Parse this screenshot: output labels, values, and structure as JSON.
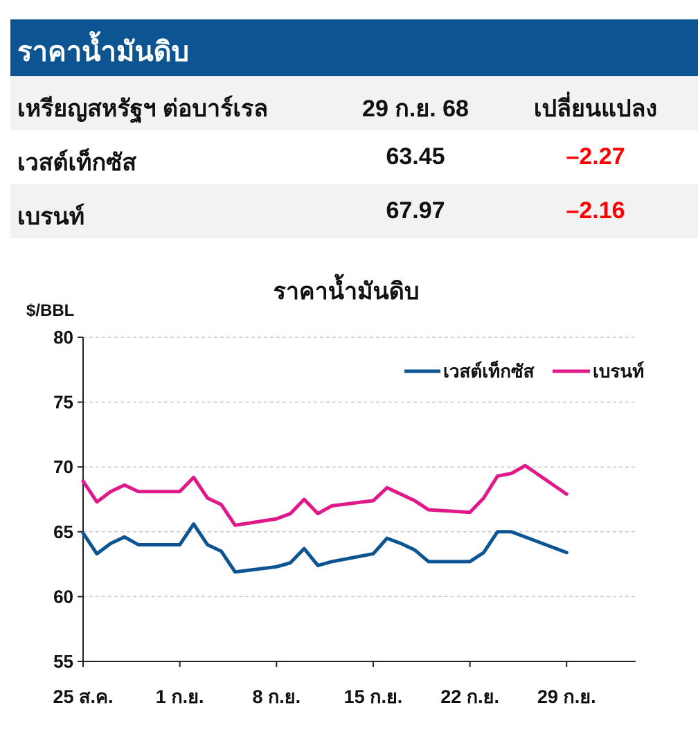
{
  "header": {
    "title": "ราคาน้ำมันดิบ"
  },
  "table": {
    "columns": [
      "เหรียญสหรัฐฯ ต่อบาร์เรล",
      "29 ก.ย. 68",
      "เปลี่ยนแปลง"
    ],
    "rows": [
      {
        "name": "เวสต์เท็กซัส",
        "price": "63.45",
        "change": "–2.27"
      },
      {
        "name": "เบรนท์",
        "price": "67.97",
        "change": "–2.16"
      }
    ]
  },
  "colors": {
    "header_bg": "#0d5592",
    "wti": "#0d5592",
    "brent": "#e0198a",
    "negative": "#ff0000"
  },
  "chart_data": {
    "type": "line",
    "title": "ราคาน้ำมันดิบ",
    "ylabel": "$/BBL",
    "ylim": [
      55,
      80
    ],
    "yticks": [
      55,
      60,
      65,
      70,
      75,
      80
    ],
    "xlim": [
      0,
      40
    ],
    "xticks": [
      {
        "x": 0,
        "label": "25 ส.ค."
      },
      {
        "x": 7,
        "label": "1 ก.ย."
      },
      {
        "x": 14,
        "label": "8 ก.ย."
      },
      {
        "x": 21,
        "label": "15 ก.ย."
      },
      {
        "x": 28,
        "label": "22 ก.ย."
      },
      {
        "x": 35,
        "label": "29 ก.ย."
      }
    ],
    "grid": true,
    "legend_position": "top-right",
    "series": [
      {
        "name": "เวสต์เท็กซัส",
        "color": "#0d5592",
        "x": [
          0,
          1,
          2,
          3,
          4,
          6,
          7,
          8,
          9,
          10,
          11,
          14,
          15,
          16,
          17,
          18,
          21,
          22,
          23,
          24,
          25,
          26,
          27,
          28,
          29,
          30,
          31,
          35
        ],
        "y": [
          64.9,
          63.3,
          64.1,
          64.6,
          64.0,
          64.0,
          64.0,
          65.6,
          64.0,
          63.5,
          61.9,
          62.3,
          62.6,
          63.7,
          62.4,
          62.7,
          63.3,
          64.5,
          64.1,
          63.6,
          62.7,
          62.7,
          62.7,
          62.7,
          63.4,
          65.0,
          65.0,
          63.4
        ]
      },
      {
        "name": "เบรนท์",
        "color": "#e0198a",
        "x": [
          0,
          1,
          2,
          3,
          4,
          6,
          7,
          8,
          9,
          10,
          11,
          14,
          15,
          16,
          17,
          18,
          21,
          22,
          23,
          24,
          25,
          28,
          29,
          30,
          31,
          32,
          35
        ],
        "y": [
          68.9,
          67.3,
          68.1,
          68.6,
          68.1,
          68.1,
          68.1,
          69.2,
          67.6,
          67.1,
          65.5,
          66.0,
          66.4,
          67.5,
          66.4,
          67.0,
          67.4,
          68.4,
          67.9,
          67.4,
          66.7,
          66.5,
          67.6,
          69.3,
          69.5,
          70.1,
          67.9
        ]
      }
    ]
  }
}
